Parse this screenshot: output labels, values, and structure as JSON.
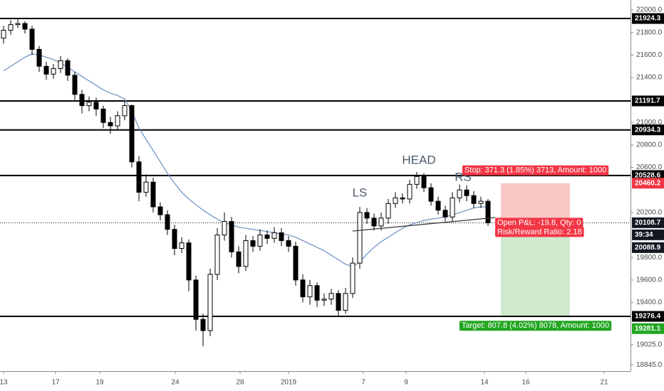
{
  "chart_data": {
    "type": "candlestick",
    "xlim": [
      -0.5,
      88
    ],
    "ylim": [
      18790,
      22089
    ],
    "xticks": [
      {
        "value": 0,
        "label": "13"
      },
      {
        "value": 7.3,
        "label": "17"
      },
      {
        "value": 13.5,
        "label": "19"
      },
      {
        "value": 24.1,
        "label": "24"
      },
      {
        "value": 33.2,
        "label": "28"
      },
      {
        "value": 40,
        "label": "2019"
      },
      {
        "value": 50.5,
        "label": "7"
      },
      {
        "value": 56.5,
        "label": "9"
      },
      {
        "value": 67.5,
        "label": "14"
      },
      {
        "value": 73.3,
        "label": "16"
      },
      {
        "value": 84.3,
        "label": "21"
      }
    ],
    "yticks": [
      {
        "value": 22000,
        "label": "22000.0"
      },
      {
        "value": 21800,
        "label": "21800.0"
      },
      {
        "value": 21600,
        "label": "21600.0"
      },
      {
        "value": 21400,
        "label": "21400.0"
      },
      {
        "value": 21000,
        "label": "21000.0"
      },
      {
        "value": 20800,
        "label": "20800.0"
      },
      {
        "value": 20600,
        "label": "20600.0"
      },
      {
        "value": 20200,
        "label": "20200.0"
      },
      {
        "value": 19800,
        "label": "19800.0"
      },
      {
        "value": 19600,
        "label": "19600.0"
      },
      {
        "value": 19400,
        "label": "19400.0"
      },
      {
        "value": 19025,
        "label": "19025.0"
      },
      {
        "value": 18845,
        "label": "18845.0"
      }
    ],
    "open": [
      21750,
      21820,
      21870,
      21880,
      21830,
      21650,
      21500,
      21430,
      21480,
      21550,
      21420,
      21250,
      21150,
      21180,
      21120,
      21000,
      20970,
      21060,
      21150,
      20650,
      20380,
      20470,
      20250,
      20180,
      20050,
      19880,
      19930,
      19600,
      19250,
      19150,
      19650,
      20000,
      20120,
      19850,
      19720,
      19950,
      19900,
      20000,
      19970,
      20020,
      19950,
      19900,
      19600,
      19450,
      19550,
      19420,
      19430,
      19480,
      19330,
      19480,
      19750,
      20200,
      20150,
      20080,
      20150,
      20280,
      20330,
      20320,
      20450,
      20520,
      20420,
      20300,
      20220,
      20160,
      20330,
      20400,
      20350,
      20280,
      20300
    ],
    "high": [
      21860,
      21910,
      21930,
      21900,
      21860,
      21680,
      21540,
      21520,
      21590,
      21570,
      21450,
      21290,
      21230,
      21220,
      21150,
      21050,
      21100,
      21190,
      21160,
      20700,
      20540,
      20510,
      20290,
      20220,
      20090,
      19980,
      19960,
      19640,
      19300,
      19700,
      20060,
      20200,
      20160,
      19900,
      20000,
      19990,
      20050,
      20040,
      20070,
      20060,
      19990,
      19940,
      19650,
      19600,
      19580,
      19480,
      19520,
      19510,
      19530,
      19800,
      20250,
      20240,
      20190,
      20200,
      20320,
      20380,
      20370,
      20490,
      20560,
      20550,
      20460,
      20340,
      20260,
      20380,
      20450,
      20440,
      20390,
      20340,
      20320
    ],
    "low": [
      21700,
      21780,
      21840,
      21790,
      21600,
      21450,
      21380,
      21390,
      21440,
      21370,
      21200,
      21080,
      21100,
      21060,
      20950,
      20900,
      20930,
      21020,
      20600,
      20300,
      20340,
      20200,
      20130,
      20000,
      19820,
      19840,
      19500,
      19150,
      19010,
      19100,
      19600,
      19950,
      19800,
      19660,
      19680,
      19850,
      19860,
      19920,
      19930,
      19900,
      19850,
      19550,
      19400,
      19380,
      19360,
      19370,
      19380,
      19270,
      19300,
      19440,
      19700,
      20100,
      20040,
      20040,
      20100,
      20240,
      20280,
      20280,
      20410,
      20380,
      20260,
      20180,
      20120,
      20120,
      20290,
      20300,
      20240,
      20240,
      20080
    ],
    "close": [
      21820,
      21870,
      21880,
      21830,
      21650,
      21500,
      21430,
      21480,
      21550,
      21420,
      21250,
      21150,
      21180,
      21120,
      21000,
      20970,
      21060,
      21150,
      20650,
      20380,
      20470,
      20250,
      20180,
      20050,
      19880,
      19930,
      19600,
      19250,
      19150,
      19650,
      20000,
      20120,
      19850,
      19720,
      19950,
      19900,
      20000,
      19970,
      20020,
      19950,
      19900,
      19600,
      19450,
      19550,
      19420,
      19430,
      19480,
      19330,
      19480,
      19750,
      20200,
      20150,
      20080,
      20150,
      20280,
      20330,
      20320,
      20450,
      20520,
      20420,
      20300,
      20220,
      20160,
      20330,
      20400,
      20350,
      20280,
      20300,
      20108
    ],
    "ma": {
      "color": "#6a8fbf",
      "values": [
        21460,
        21500,
        21540,
        21580,
        21610,
        21600,
        21580,
        21560,
        21530,
        21490,
        21450,
        21410,
        21370,
        21330,
        21290,
        21260,
        21240,
        21210,
        21100,
        20950,
        20850,
        20750,
        20650,
        20550,
        20460,
        20380,
        20320,
        20270,
        20220,
        20180,
        20140,
        20110,
        20090,
        20070,
        20060,
        20050,
        20040,
        20030,
        20020,
        20010,
        20000,
        19980,
        19950,
        19920,
        19890,
        19860,
        19820,
        19780,
        19740,
        19720,
        19760,
        19830,
        19890,
        19940,
        19980,
        20020,
        20060,
        20090,
        20110,
        20130,
        20140,
        20150,
        20160,
        20180,
        20200,
        20220,
        20240,
        20250,
        20250
      ]
    },
    "levels": [
      21924.3,
      21191.7,
      20934.3,
      20528.6,
      19276.4
    ],
    "current_price": 20108.7,
    "countdown": "39:34",
    "position": {
      "entry": 20088.9,
      "stop": 20460.2,
      "target": 19281.1,
      "x_start": 69.8,
      "x_end": 79.5,
      "stop_label": "Stop: 371.3 (1.85%) 3713, Amount: 1000",
      "pnl_label": "Open P&L: -19.8, Qty: 0",
      "rr_label": "Risk/Reward Ratio: 2.18",
      "target_label": "Target: 807.8 (4.02%) 8078, Amount: 1000"
    },
    "annotations": [
      {
        "text": "LS",
        "x": 50,
        "y": 20370
      },
      {
        "text": "HEAD",
        "x": 58.3,
        "y": 20660
      },
      {
        "text": "RS",
        "x": 64.5,
        "y": 20510
      }
    ],
    "neckline": {
      "x": [
        49,
        69
      ],
      "y": [
        20035,
        20155
      ]
    }
  }
}
